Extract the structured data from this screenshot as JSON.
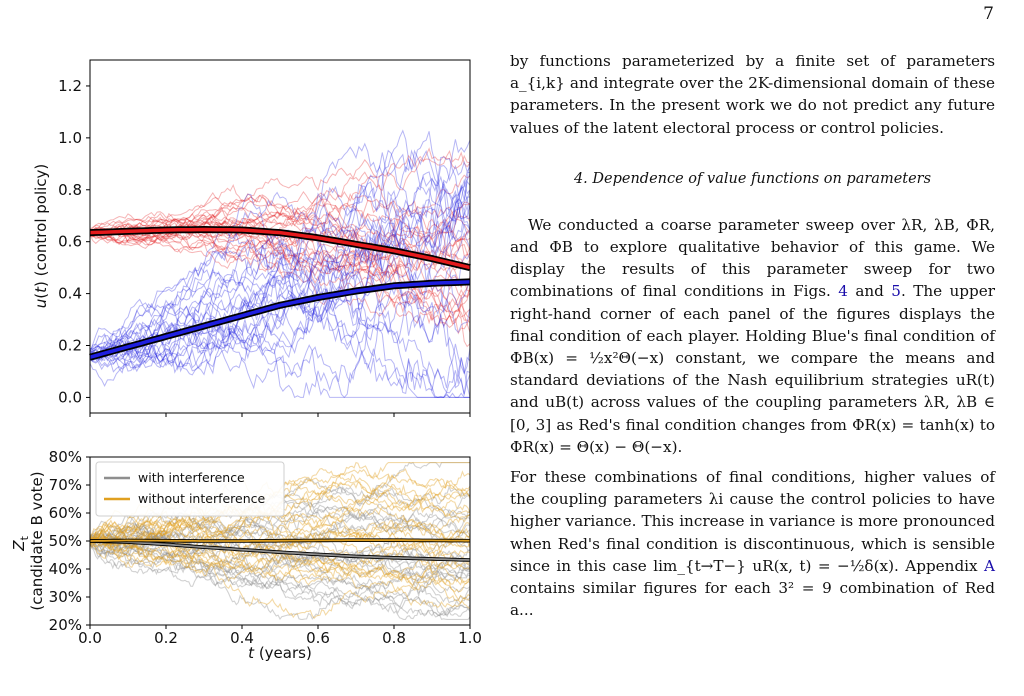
{
  "page_number": "7",
  "text": {
    "p1": "by functions parameterized by a finite set of parameters a_{i,k} and integrate over the 2K-dimensional domain of these parameters. In the present work we do not predict any future values of the latent electoral process or control policies.",
    "section": "4.   Dependence of value functions on parameters",
    "p2_a": "We conducted a coarse parameter sweep over λR, λB, ΦR, and ΦB to explore qualitative behavior of this game. We display the results of this parameter sweep for two combinations of final conditions in Figs. ",
    "p2_ref1": "4",
    "p2_and": " and ",
    "p2_ref2": "5",
    "p2_b": ". The upper right-hand corner of each panel of the figures displays the final condition of each player. Holding Blue's final condition of ΦB(x) = ½x²Θ(−x) constant, we compare the means and standard deviations of the Nash equilibrium strategies uR(t) and uB(t) across values of the coupling parameters λR, λB ∈ [0, 3] as Red's final condition changes from ΦR(x) = tanh(x) to ΦR(x) = Θ(x) − Θ(−x).",
    "p3_a": "For these combinations of final conditions, higher values of the coupling parameters λi cause the control policies to have higher variance. This increase in variance is more pronounced when Red's final condition is discontinuous, which is sensible since in this case lim_{t→T−} uR(x, t) = −½δ(x). Appendix ",
    "p3_ref": "A",
    "p3_b": " contains similar figures for each 3² = 9 combination of Red a..."
  },
  "colors": {
    "red": "#e41a1c",
    "blue": "#1f1fe0",
    "gray": "#8e8e8e",
    "orange": "#e0a020",
    "link": "#1a0dab"
  },
  "chart_data": [
    {
      "type": "line",
      "ylabel": "u(t) (control policy)",
      "xlim": [
        0.0,
        1.0
      ],
      "ylim": [
        -0.06,
        1.3
      ],
      "xticks": [
        "0.0",
        "0.2",
        "0.4",
        "0.6",
        "0.8",
        "1.0"
      ],
      "yticks": [
        "0.0",
        "0.2",
        "0.4",
        "0.6",
        "0.8",
        "1.0",
        "1.2"
      ],
      "ytick_values": [
        0.0,
        0.2,
        0.4,
        0.6,
        0.8,
        1.0,
        1.2
      ],
      "mean_x": [
        0.0,
        0.1,
        0.2,
        0.3,
        0.4,
        0.5,
        0.6,
        0.7,
        0.8,
        0.9,
        1.0
      ],
      "series": [
        {
          "color": "red",
          "values": [
            0.635,
            0.64,
            0.645,
            0.647,
            0.645,
            0.635,
            0.615,
            0.59,
            0.565,
            0.535,
            0.5
          ]
        },
        {
          "color": "blue",
          "values": [
            0.155,
            0.195,
            0.235,
            0.275,
            0.315,
            0.355,
            0.385,
            0.41,
            0.43,
            0.44,
            0.445
          ]
        }
      ]
    },
    {
      "type": "line",
      "ylabel_lines": [
        "Z_t",
        "(candidate B vote)"
      ],
      "xlabel": "t (years)",
      "xlim": [
        0.0,
        1.0
      ],
      "ylim": [
        20,
        80
      ],
      "xticks": [
        "0.0",
        "0.2",
        "0.4",
        "0.6",
        "0.8",
        "1.0"
      ],
      "yticks": [
        "20%",
        "30%",
        "40%",
        "50%",
        "60%",
        "70%",
        "80%"
      ],
      "ytick_values": [
        20,
        30,
        40,
        50,
        60,
        70,
        80
      ],
      "legend_position": "top-left",
      "mean_x": [
        0.0,
        0.1,
        0.2,
        0.3,
        0.4,
        0.5,
        0.6,
        0.7,
        0.8,
        0.9,
        1.0
      ],
      "series": [
        {
          "name": "with interference",
          "color": "gray",
          "values": [
            50.0,
            49.6,
            48.8,
            47.8,
            46.9,
            46.0,
            45.2,
            44.5,
            44.0,
            43.6,
            43.2
          ]
        },
        {
          "name": "without interference",
          "color": "orange",
          "values": [
            50.0,
            50.2,
            50.1,
            50.0,
            50.0,
            50.1,
            50.2,
            50.3,
            50.3,
            50.2,
            50.1
          ]
        }
      ]
    }
  ]
}
